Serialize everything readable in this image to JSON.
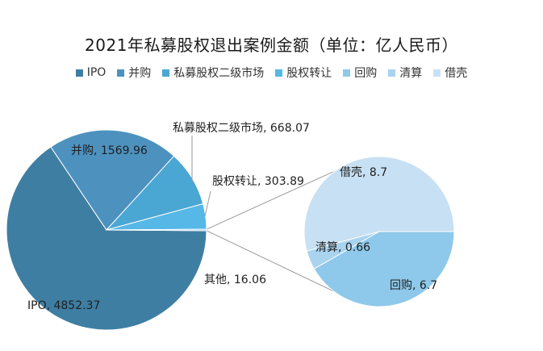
{
  "chart_data": {
    "type": "pie",
    "title": "2021年私募股权退出案例金额（单位：亿人民币）",
    "colors": {
      "IPO": "#3f7ea3",
      "并购": "#4d92bf",
      "私募股权二级市场": "#4aa6d3",
      "股权转让": "#55b8e6",
      "回购": "#8ec8ea",
      "清算": "#a9d3ef",
      "借壳": "#c7e0f3",
      "connector": "#9a9a9a"
    },
    "main_pie": {
      "slices": [
        {
          "name": "IPO",
          "value": 4852.37,
          "label": "IPO, 4852.37"
        },
        {
          "name": "并购",
          "value": 1569.96,
          "label": "并购, 1569.96"
        },
        {
          "name": "私募股权二级市场",
          "value": 668.07,
          "label": "私募股权二级市场, 668.07"
        },
        {
          "name": "股权转让",
          "value": 303.89,
          "label": "股权转让, 303.89"
        },
        {
          "name": "其他",
          "value": 16.06,
          "label": "其他, 16.06"
        }
      ]
    },
    "secondary_pie": {
      "of": "其他",
      "slices": [
        {
          "name": "回购",
          "value": 6.7,
          "label": "回购, 6.7"
        },
        {
          "name": "清算",
          "value": 0.66,
          "label": "清算, 0.66"
        },
        {
          "name": "借壳",
          "value": 8.7,
          "label": "借壳, 8.7"
        }
      ]
    },
    "legend": {
      "placement": "top",
      "entries": [
        "IPO",
        "并购",
        "私募股权二级市场",
        "股权转让",
        "回购",
        "清算",
        "借壳"
      ]
    }
  }
}
